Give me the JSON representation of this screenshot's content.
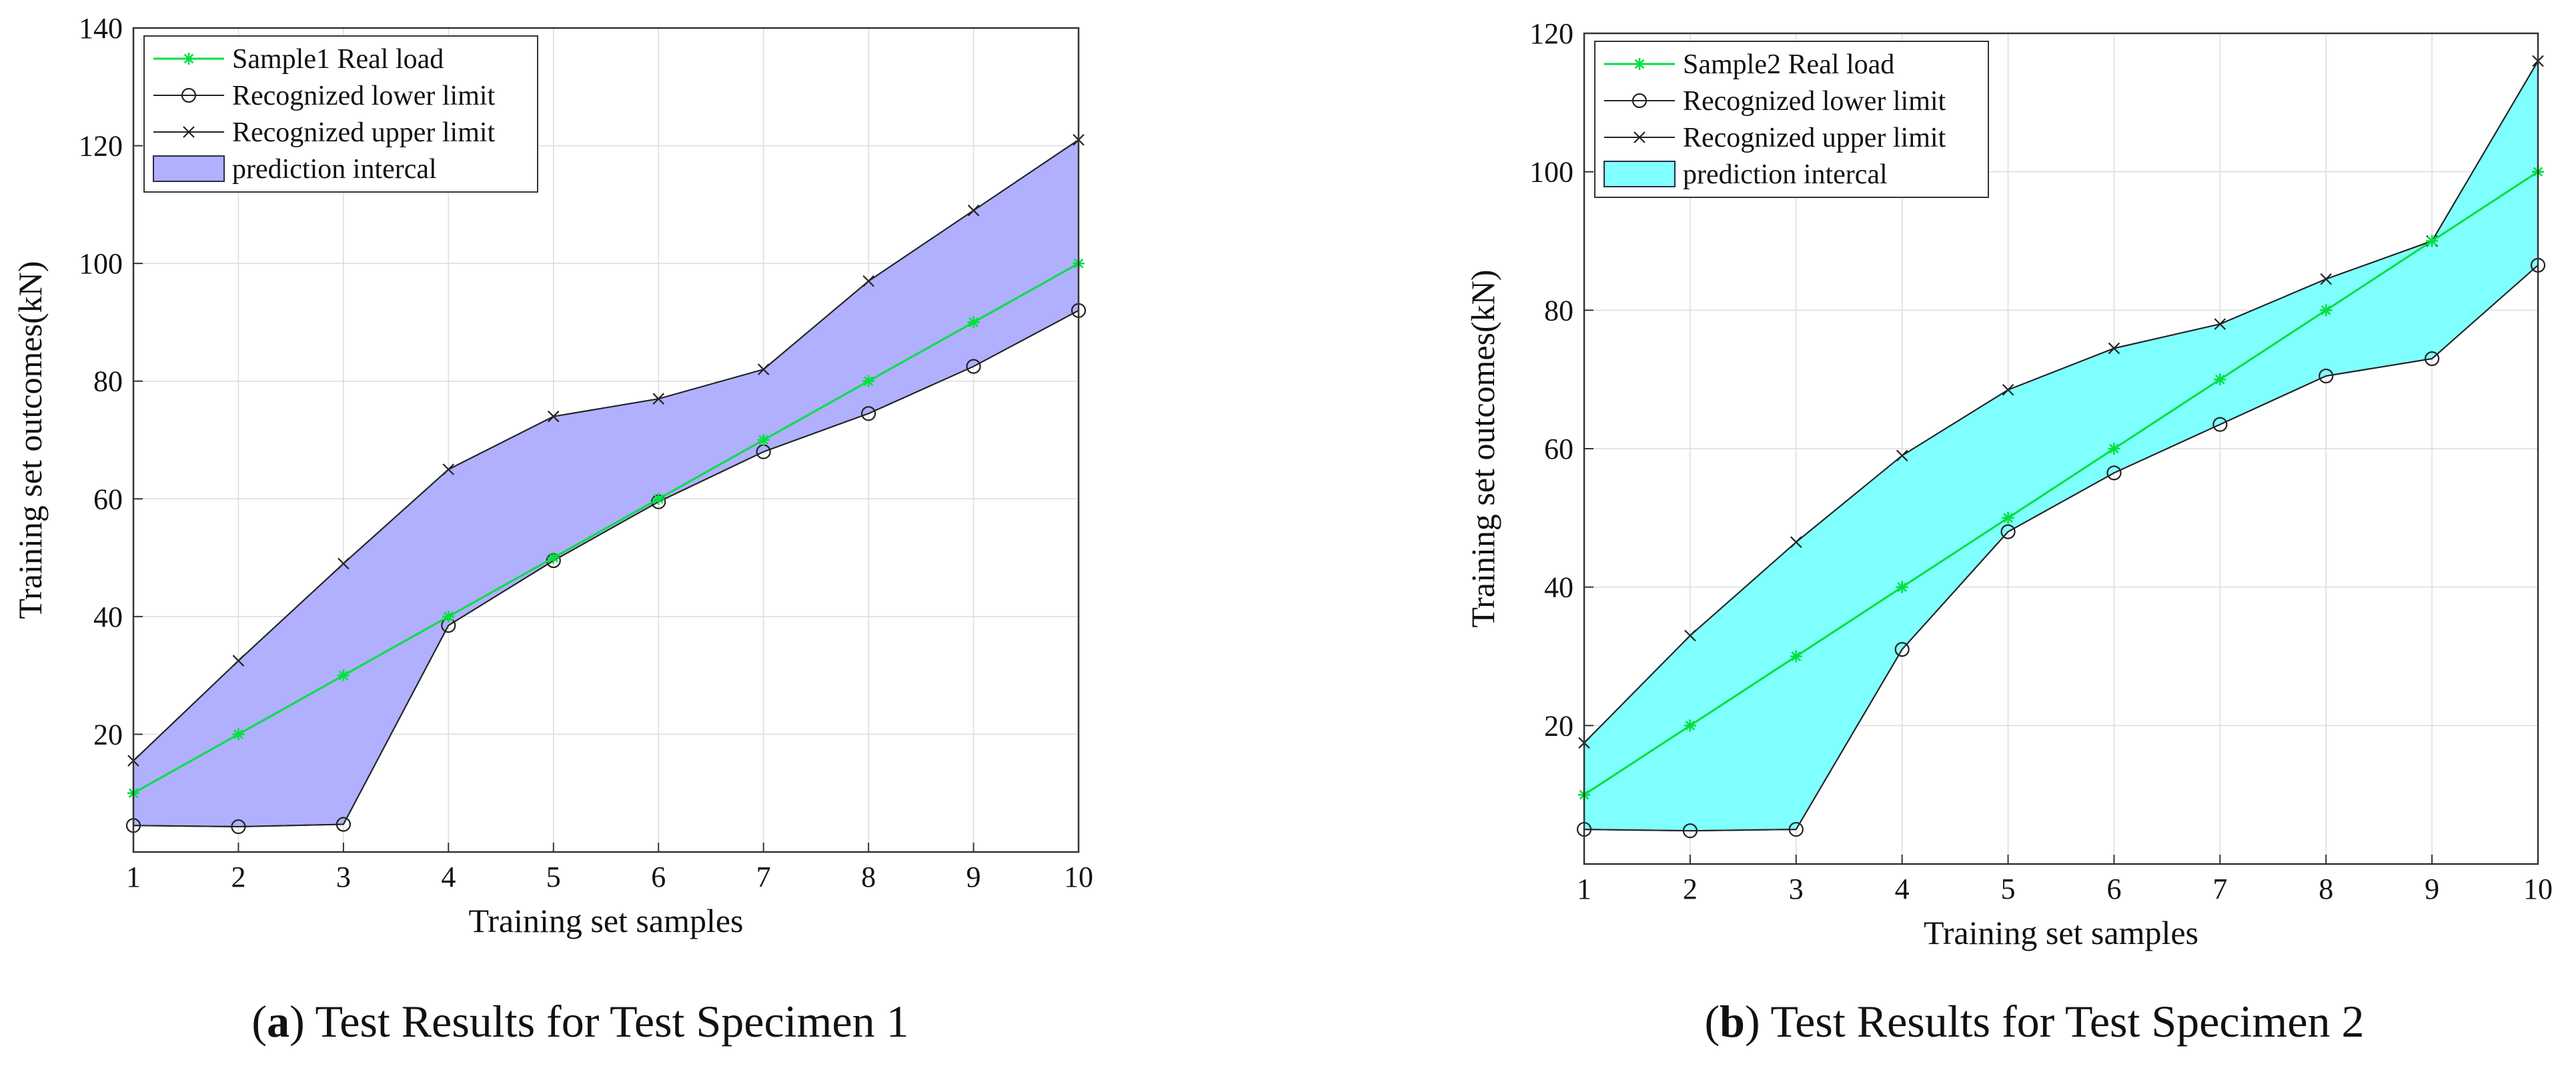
{
  "chart_data": [
    {
      "type": "line",
      "panel": "a",
      "title": "",
      "caption_letter": "a",
      "caption_text": "Test Results for Test Specimen 1",
      "xlabel": "Training set samples",
      "ylabel": "Training set outcomes(kN)",
      "xlim": [
        1,
        10
      ],
      "ylim": [
        0,
        140
      ],
      "xticks": [
        1,
        2,
        3,
        4,
        5,
        6,
        7,
        8,
        9,
        10
      ],
      "yticks": [
        20,
        40,
        60,
        80,
        100,
        120,
        140
      ],
      "grid": true,
      "legend_position": "top-left",
      "fill_color": "#b0b0ff",
      "x": [
        1,
        2,
        3,
        4,
        5,
        6,
        7,
        8,
        9,
        10
      ],
      "series": [
        {
          "name": "Sample1 Real load",
          "marker": "asterisk",
          "color": "#00e040",
          "values": [
            10,
            20,
            30,
            40,
            50,
            60,
            70,
            80,
            90,
            100
          ]
        },
        {
          "name": "Recognized lower limit",
          "marker": "circle",
          "color": "#222222",
          "values": [
            4.5,
            4.3,
            4.7,
            38.5,
            49.5,
            59.5,
            68,
            74.5,
            82.5,
            92
          ]
        },
        {
          "name": "Recognized upper limit",
          "marker": "x",
          "color": "#222222",
          "values": [
            15.5,
            32.5,
            49,
            65,
            74,
            77,
            82,
            97,
            109,
            121
          ]
        }
      ],
      "band_label": "prediction intercal"
    },
    {
      "type": "line",
      "panel": "b",
      "title": "",
      "caption_letter": "b",
      "caption_text": "Test Results for Test Specimen 2",
      "xlabel": "Training set samples",
      "ylabel": "Training set outcomes(kN)",
      "xlim": [
        1,
        10
      ],
      "ylim": [
        0,
        120
      ],
      "xticks": [
        1,
        2,
        3,
        4,
        5,
        6,
        7,
        8,
        9,
        10
      ],
      "yticks": [
        20,
        40,
        60,
        80,
        100,
        120
      ],
      "grid": true,
      "legend_position": "top-left",
      "fill_color": "#80ffff",
      "x": [
        1,
        2,
        3,
        4,
        5,
        6,
        7,
        8,
        9,
        10
      ],
      "series": [
        {
          "name": "Sample2 Real load",
          "marker": "asterisk",
          "color": "#00e040",
          "values": [
            10,
            20,
            30,
            40,
            50,
            60,
            70,
            80,
            90,
            100
          ]
        },
        {
          "name": "Recognized lower limit",
          "marker": "circle",
          "color": "#222222",
          "values": [
            5,
            4.8,
            5,
            31,
            48,
            56.5,
            63.5,
            70.5,
            73,
            86.5
          ]
        },
        {
          "name": "Recognized upper limit",
          "marker": "x",
          "color": "#222222",
          "values": [
            17.5,
            33,
            46.5,
            59,
            68.5,
            74.5,
            78,
            84.5,
            90,
            116
          ]
        }
      ],
      "band_label": "prediction intercal"
    }
  ]
}
